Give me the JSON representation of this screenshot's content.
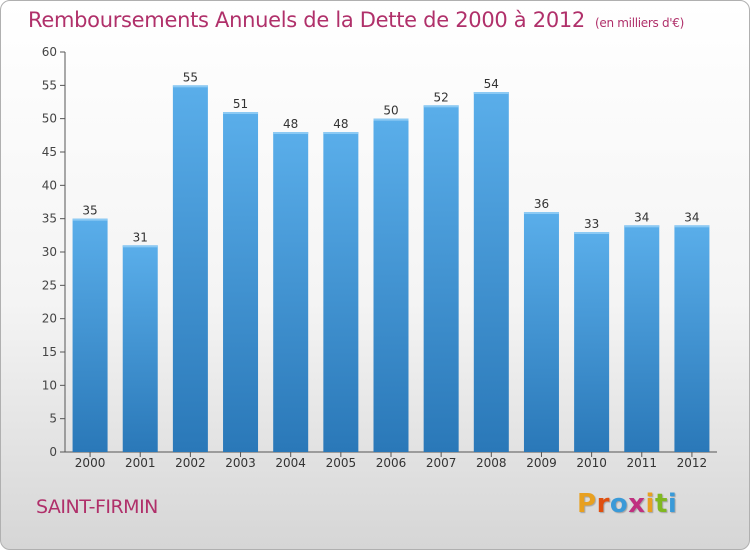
{
  "title": "Remboursements Annuels de la Dette de 2000 à 2012",
  "subtitle": "(en milliers d'€)",
  "commune": "SAINT-FIRMIN",
  "logo": "Proxiti",
  "colors": {
    "title": "#b0306a",
    "bar_top": "#5aaeea",
    "bar_bottom": "#2a78b8",
    "logo_letters": [
      "#e8a020",
      "#e05010",
      "#3a9ad8",
      "#c03080",
      "#e8a020",
      "#80b820",
      "#3a9ad8"
    ]
  },
  "chart_data": {
    "type": "bar",
    "categories": [
      "2000",
      "2001",
      "2002",
      "2003",
      "2004",
      "2005",
      "2006",
      "2007",
      "2008",
      "2009",
      "2010",
      "2011",
      "2012"
    ],
    "values": [
      35,
      31,
      55,
      51,
      48,
      48,
      50,
      52,
      54,
      36,
      33,
      34,
      34
    ],
    "ylim": [
      0,
      60
    ],
    "yticks": [
      0,
      5,
      10,
      15,
      20,
      25,
      30,
      35,
      40,
      45,
      50,
      55,
      60
    ],
    "grid": false,
    "data_labels": true
  }
}
